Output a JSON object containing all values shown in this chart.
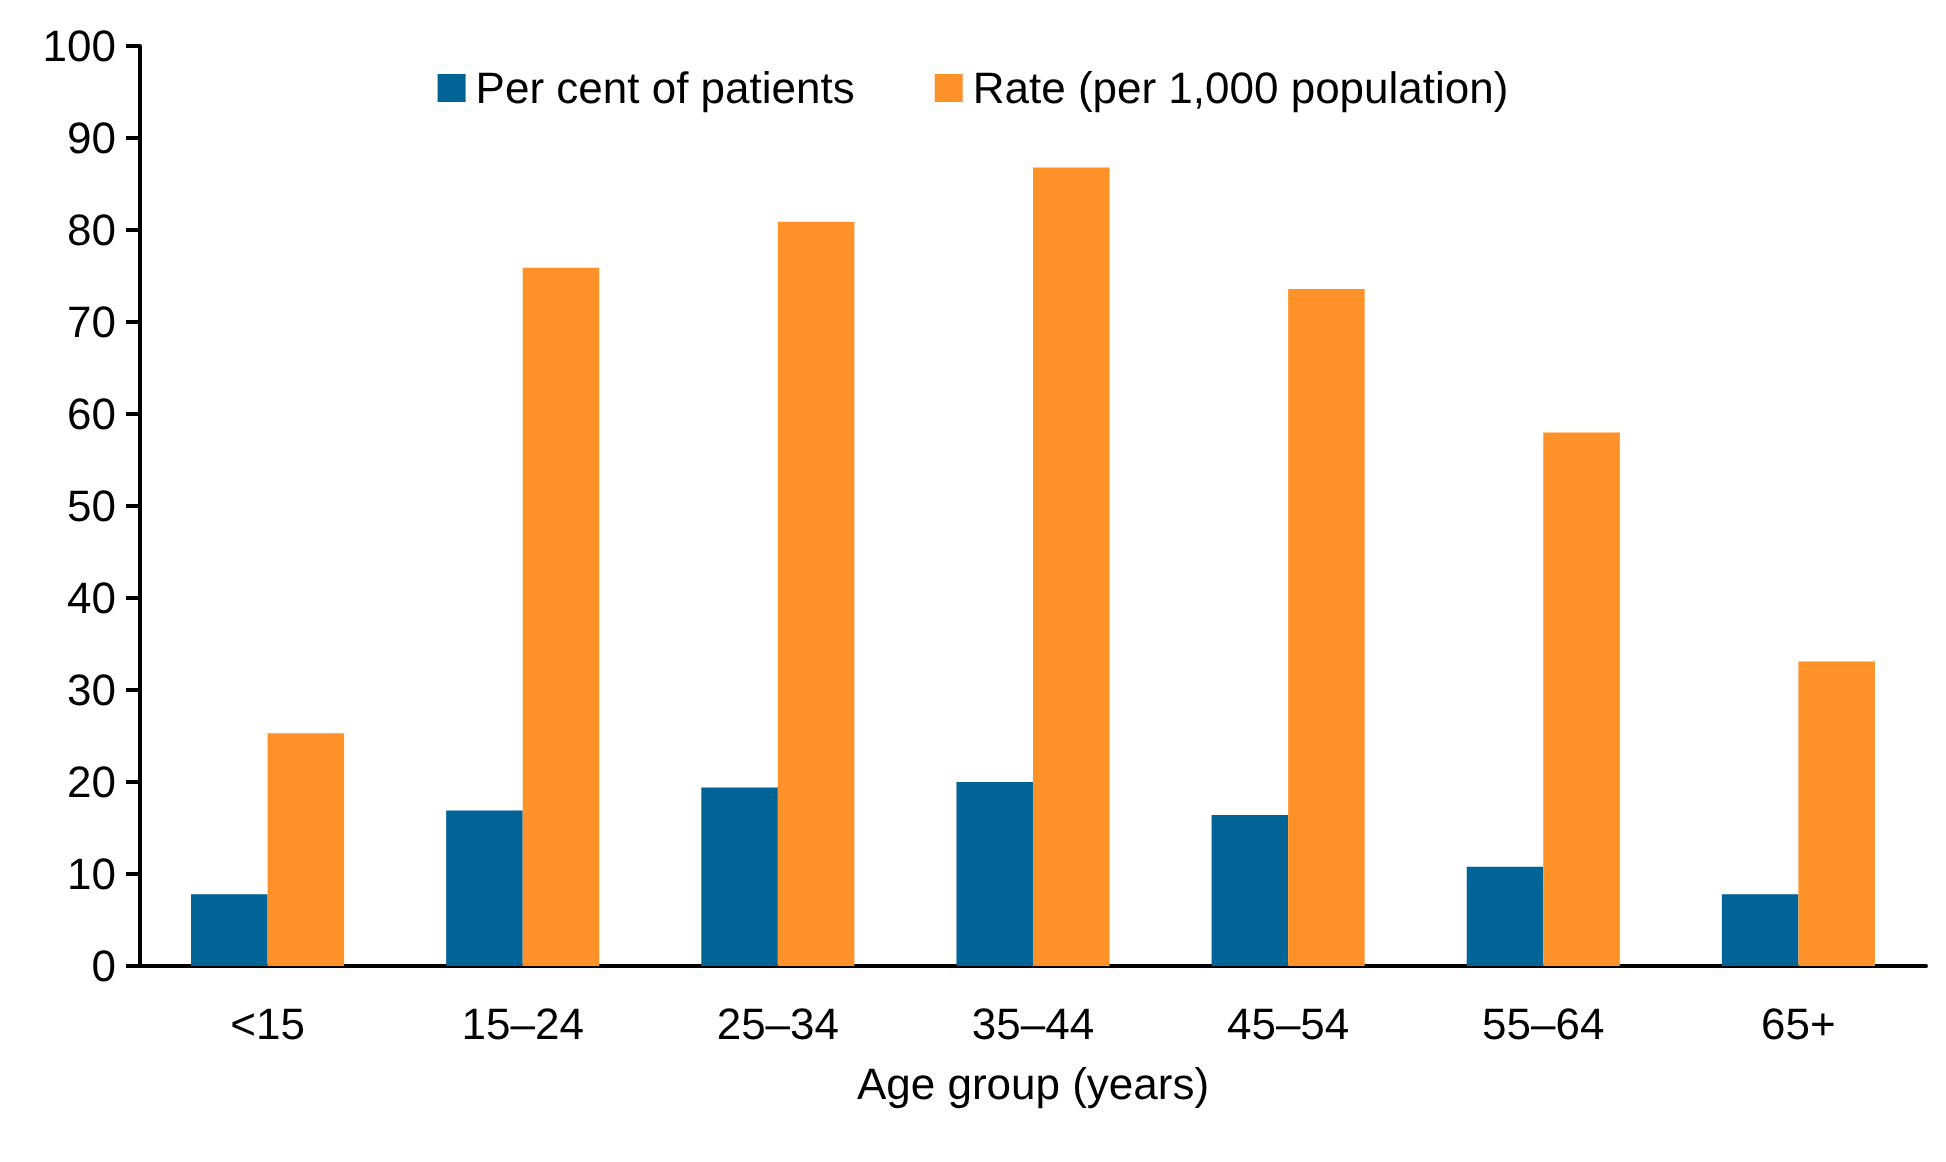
{
  "chart_data": {
    "type": "bar",
    "xlabel": "Age group (years)",
    "categories": [
      "<15",
      "15–24",
      "25–34",
      "35–44",
      "45–54",
      "55–64",
      "65+"
    ],
    "series": [
      {
        "name": "Per cent of patients",
        "color": "#006496",
        "values": [
          7.8,
          16.9,
          19.4,
          20.0,
          16.4,
          10.8,
          7.8
        ]
      },
      {
        "name": "Rate (per 1,000 population)",
        "color": "#fe9228",
        "values": [
          25.3,
          75.9,
          80.9,
          86.8,
          73.6,
          58.0,
          33.1
        ]
      }
    ],
    "ylim": [
      0,
      100
    ],
    "yticks": [
      0,
      10,
      20,
      30,
      40,
      50,
      60,
      70,
      80,
      90,
      100
    ],
    "grid": false,
    "legend": "top"
  }
}
